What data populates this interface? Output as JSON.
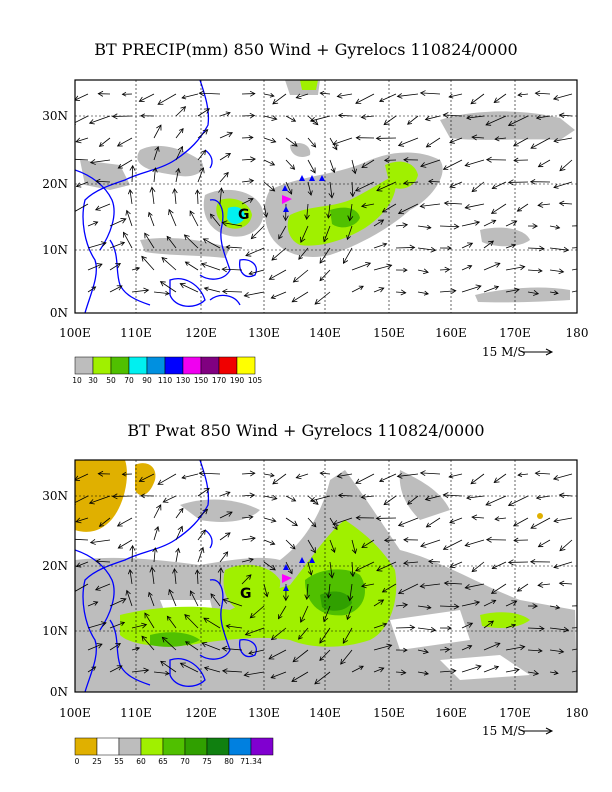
{
  "panels": [
    {
      "title": "BT PRECIP(mm) 850 Wind + Gyrelocs 110824/0000",
      "lon_labels": [
        "100E",
        "110E",
        "120E",
        "130E",
        "140E",
        "150E",
        "160E",
        "170E",
        "180"
      ],
      "lat_labels": [
        "30N",
        "20N",
        "10N",
        "0N"
      ],
      "ref_vector": "15 M/S",
      "colorbar_labels": [
        "10",
        "30",
        "50",
        "70",
        "90",
        "110",
        "130",
        "150",
        "170",
        "190",
        "105"
      ],
      "colorbar_colors": [
        "#bdbdbd",
        "#a0f000",
        "#50c000",
        "#00f0f0",
        "#0090e0",
        "#0000ff",
        "#f000f0",
        "#800080",
        "#f00000",
        "#ffff00"
      ],
      "gyre_label": "G"
    },
    {
      "title": "BT Pwat 850 Wind + Gyrelocs 110824/0000",
      "lon_labels": [
        "100E",
        "110E",
        "120E",
        "130E",
        "140E",
        "150E",
        "160E",
        "170E",
        "180"
      ],
      "lat_labels": [
        "30N",
        "20N",
        "10N",
        "0N"
      ],
      "ref_vector": "15 M/S",
      "colorbar_labels": [
        "0",
        "25",
        "55",
        "60",
        "65",
        "70",
        "75",
        "80",
        "71.34"
      ],
      "colorbar_colors": [
        "#e0b000",
        "#ffffff",
        "#bdbdbd",
        "#a0f000",
        "#50c000",
        "#30a000",
        "#108010",
        "#0080e0",
        "#8000d0"
      ],
      "gyre_label": "G"
    }
  ]
}
